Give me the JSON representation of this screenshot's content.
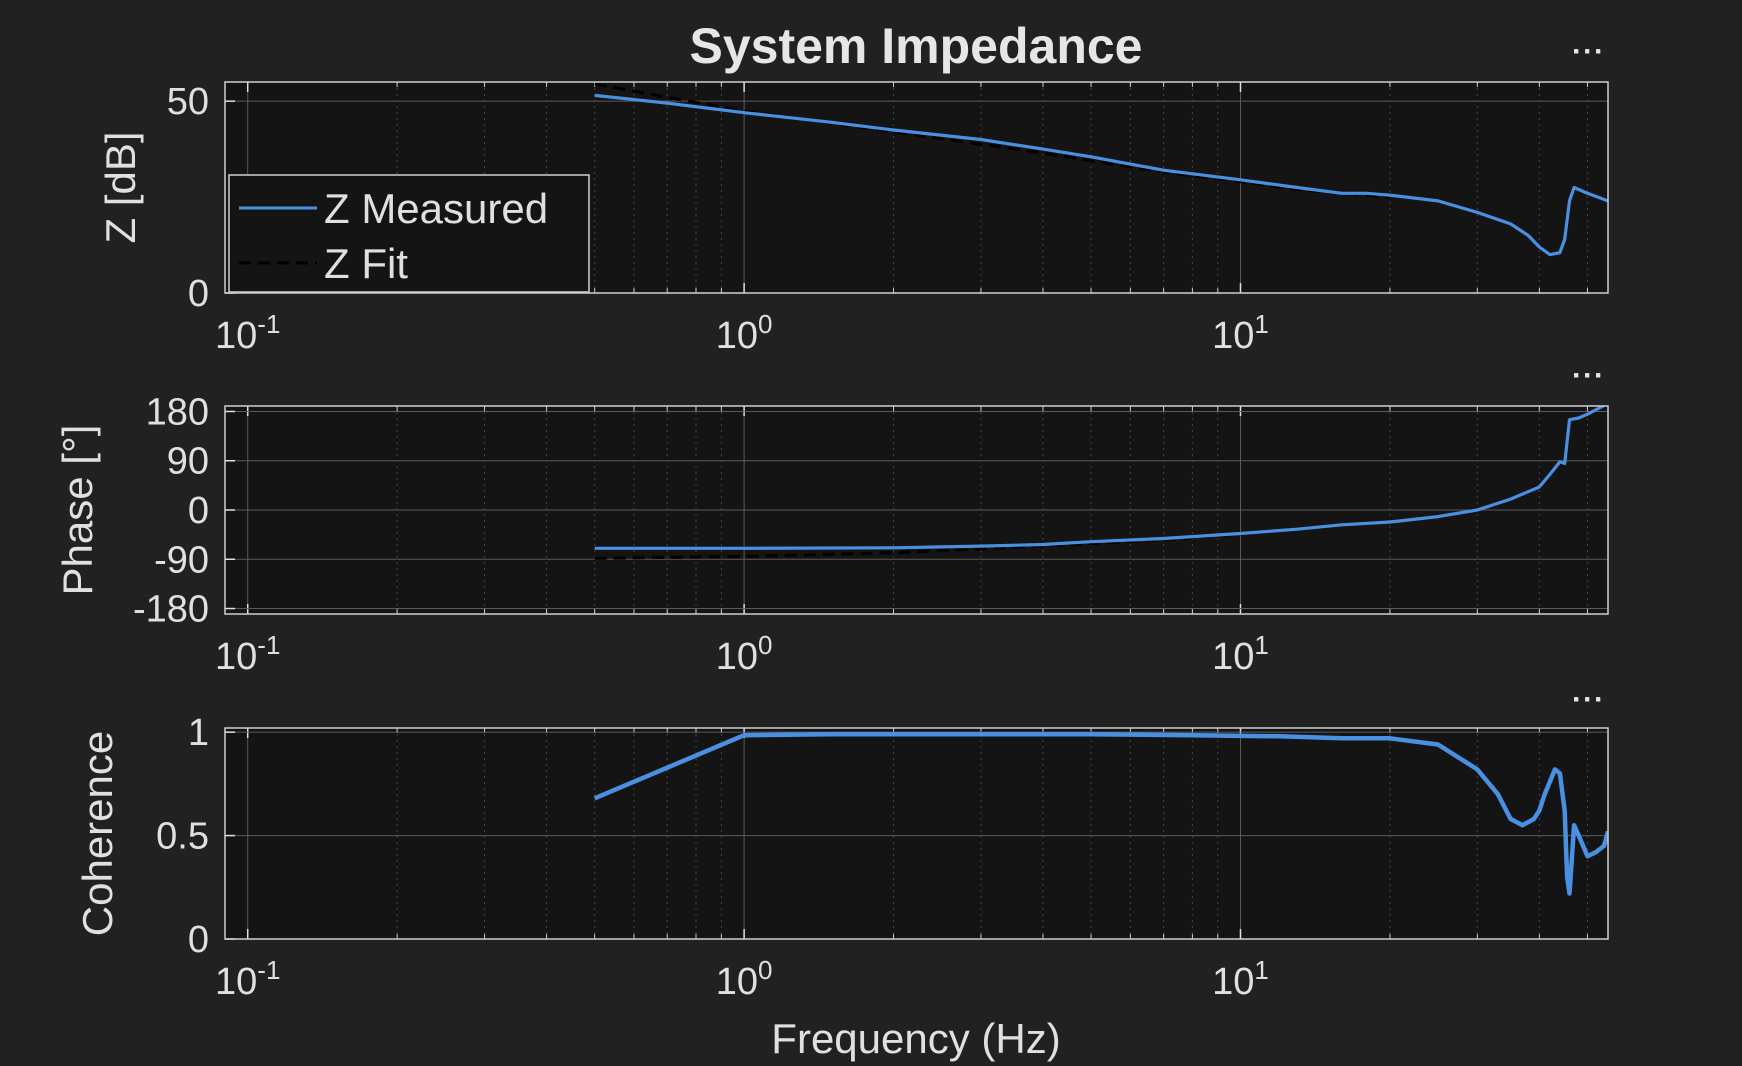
{
  "figure": {
    "title": "System Impedance",
    "background": "#212121",
    "axes_background": "#141414"
  },
  "colors": {
    "measured": "#4a90e2",
    "fit": "#000000",
    "text": "#e0e0e0",
    "grid": "#5a5a5a"
  },
  "toolbar": {
    "more_label": "···"
  },
  "chart_data": [
    {
      "type": "line",
      "title": "System Impedance",
      "xlabel": "",
      "ylabel": "Z [dB]",
      "xscale": "log",
      "xlim": [
        0.09,
        55
      ],
      "ylim": [
        0,
        55
      ],
      "yticks": [
        0,
        50
      ],
      "ytick_labels": [
        "0",
        "50"
      ],
      "xticks": [
        0.1,
        1,
        10
      ],
      "xtick_labels": [
        [
          "10",
          "-1"
        ],
        [
          "10",
          "0"
        ],
        [
          "10",
          "1"
        ]
      ],
      "grid": true,
      "legend": {
        "position": "top-left-lower",
        "entries": [
          "Z Measured",
          "Z Fit"
        ]
      },
      "series": [
        {
          "name": "Z Measured",
          "style": "solid",
          "x": [
            0.5,
            0.7,
            1,
            1.5,
            2,
            3,
            4,
            5,
            7,
            10,
            13,
            16,
            18,
            20,
            25,
            30,
            35,
            38,
            40,
            42,
            44,
            45,
            46,
            47,
            50,
            55
          ],
          "y": [
            51.5,
            49.5,
            47,
            44.5,
            42.5,
            40,
            37.5,
            35.5,
            32,
            29.5,
            27.5,
            26,
            26,
            25.5,
            24,
            21,
            18,
            15,
            12,
            10,
            10.5,
            14,
            24,
            27.5,
            26,
            24
          ]
        },
        {
          "name": "Z Fit",
          "style": "dashed",
          "x": [
            0.5,
            0.7,
            1,
            2,
            4,
            7,
            10,
            13,
            16,
            20
          ],
          "y": [
            54.5,
            51,
            47.5,
            42,
            36.5,
            31.5,
            29,
            27,
            26,
            25
          ]
        }
      ]
    },
    {
      "type": "line",
      "xlabel": "",
      "ylabel": "Phase [°]",
      "xscale": "log",
      "xlim": [
        0.09,
        55
      ],
      "ylim": [
        -190,
        190
      ],
      "yticks": [
        -180,
        -90,
        0,
        90,
        180
      ],
      "ytick_labels": [
        "-180",
        "-90",
        "0",
        "90",
        "180"
      ],
      "xticks": [
        0.1,
        1,
        10
      ],
      "xtick_labels": [
        [
          "10",
          "-1"
        ],
        [
          "10",
          "0"
        ],
        [
          "10",
          "1"
        ]
      ],
      "grid": true,
      "series": [
        {
          "name": "Z Measured",
          "style": "solid",
          "x": [
            0.5,
            1,
            2,
            3,
            4,
            5,
            7,
            10,
            13,
            16,
            20,
            25,
            30,
            35,
            40,
            42,
            44,
            45,
            46,
            48,
            50,
            55
          ],
          "y": [
            -70,
            -70,
            -69,
            -66,
            -63,
            -58,
            -52,
            -43,
            -35,
            -27,
            -22,
            -12,
            0,
            20,
            42,
            65,
            88,
            85,
            165,
            168,
            175,
            195
          ]
        },
        {
          "name": "Z Fit",
          "style": "dashed",
          "x": [
            0.5,
            1,
            2,
            4,
            7,
            10,
            13,
            16
          ],
          "y": [
            -88,
            -85,
            -78,
            -66,
            -54,
            -44,
            -35,
            -28
          ]
        }
      ]
    },
    {
      "type": "line",
      "xlabel": "Frequency (Hz)",
      "ylabel": "Coherence",
      "xscale": "log",
      "xlim": [
        0.09,
        55
      ],
      "ylim": [
        0,
        1.02
      ],
      "yticks": [
        0,
        0.5,
        1
      ],
      "ytick_labels": [
        "0",
        "0.5",
        "1"
      ],
      "xticks": [
        0.1,
        1,
        10
      ],
      "xtick_labels": [
        [
          "10",
          "-1"
        ],
        [
          "10",
          "0"
        ],
        [
          "10",
          "1"
        ]
      ],
      "grid": true,
      "series": [
        {
          "name": "Z Measured",
          "style": "solid",
          "x": [
            0.5,
            1,
            1.5,
            3,
            5,
            8,
            12,
            16,
            20,
            25,
            30,
            33,
            35,
            37,
            39,
            40,
            41,
            42,
            43,
            44,
            45,
            45.5,
            46,
            47,
            48,
            49,
            50,
            52,
            54,
            55
          ],
          "y": [
            0.68,
            0.985,
            0.99,
            0.99,
            0.99,
            0.985,
            0.98,
            0.97,
            0.97,
            0.94,
            0.82,
            0.7,
            0.58,
            0.55,
            0.58,
            0.62,
            0.7,
            0.76,
            0.82,
            0.8,
            0.62,
            0.3,
            0.22,
            0.55,
            0.5,
            0.45,
            0.4,
            0.42,
            0.45,
            0.52
          ]
        }
      ]
    }
  ]
}
